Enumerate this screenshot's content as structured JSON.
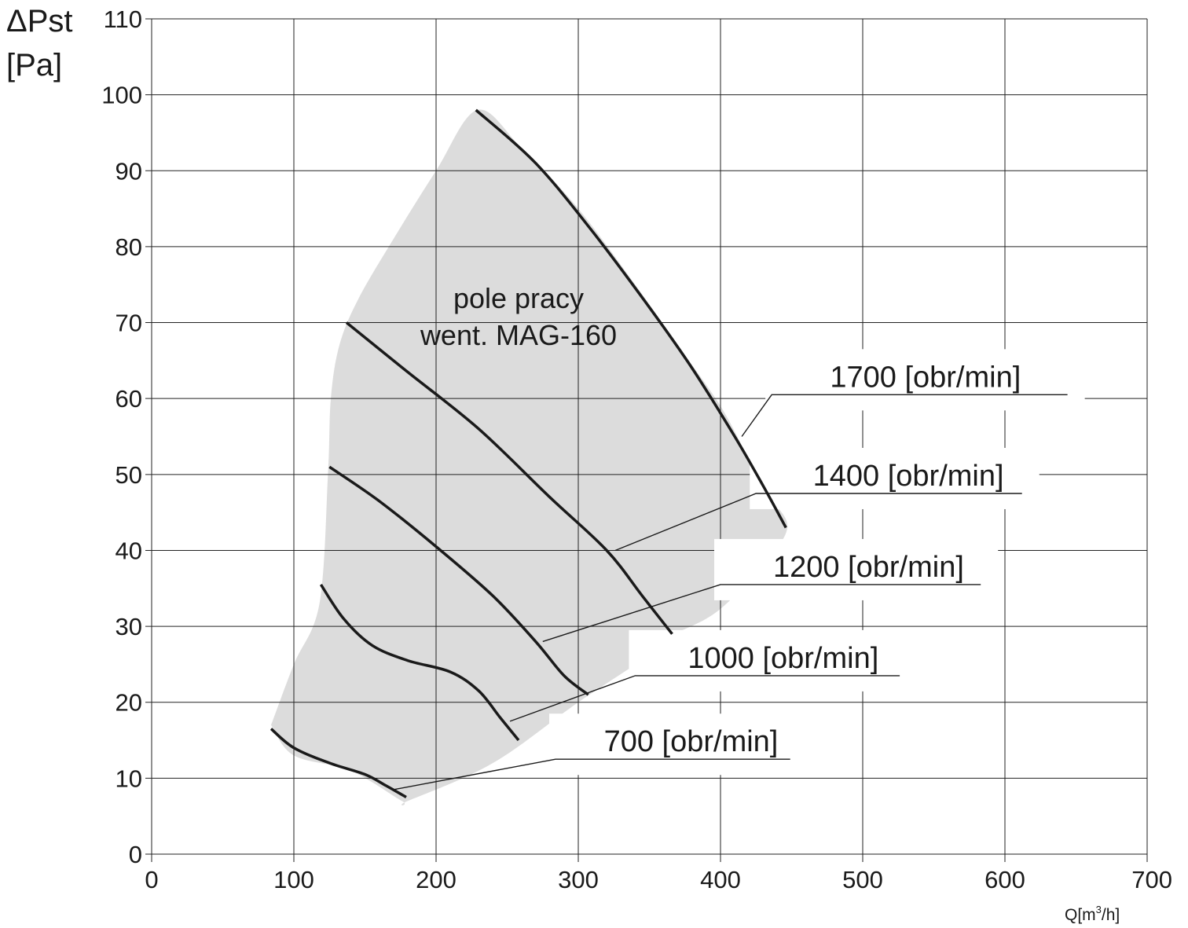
{
  "chart_data": {
    "type": "line",
    "ylabel_line1": "ΔPst",
    "ylabel_line2": "[Pa]",
    "xlabel_main": "Q[m",
    "xlabel_sup": "3",
    "xlabel_end": "/h]",
    "xlim": [
      0,
      700
    ],
    "ylim": [
      0,
      110
    ],
    "xticks": [
      "0",
      "100",
      "200",
      "300",
      "400",
      "500",
      "600",
      "700"
    ],
    "yticks": [
      "0",
      "10",
      "20",
      "30",
      "40",
      "50",
      "60",
      "70",
      "80",
      "90",
      "100",
      "110"
    ],
    "grid": true,
    "region": {
      "label_line1": "pole pracy",
      "label_line2": "went. MAG-160",
      "color": "#dcdcdc",
      "boundary": [
        [
          84,
          17
        ],
        [
          100,
          25
        ],
        [
          118,
          33
        ],
        [
          124,
          50
        ],
        [
          126,
          60
        ],
        [
          132,
          67
        ],
        [
          145,
          73
        ],
        [
          170,
          81
        ],
        [
          200,
          90
        ],
        [
          229,
          98
        ],
        [
          260,
          93
        ],
        [
          300,
          85
        ],
        [
          340,
          75
        ],
        [
          370,
          67
        ],
        [
          400,
          59
        ],
        [
          420,
          52
        ],
        [
          435,
          47
        ],
        [
          447,
          43
        ],
        [
          430,
          38
        ],
        [
          410,
          34
        ],
        [
          390,
          31
        ],
        [
          356,
          28
        ],
        [
          356,
          27
        ],
        [
          300,
          20
        ],
        [
          240,
          12
        ],
        [
          180,
          7
        ],
        [
          176,
          7
        ],
        [
          140,
          11
        ],
        [
          100,
          13
        ],
        [
          84,
          17
        ]
      ]
    },
    "series": [
      {
        "name": "700 [obr/min]",
        "points": [
          [
            84,
            16.5
          ],
          [
            100,
            14
          ],
          [
            125,
            12
          ],
          [
            150,
            10.5
          ],
          [
            165,
            9
          ],
          [
            179,
            7.5
          ]
        ],
        "label_anchor": [
          170,
          8.5
        ]
      },
      {
        "name": "1000 [obr/min]",
        "points": [
          [
            119,
            35.5
          ],
          [
            135,
            31
          ],
          [
            155,
            27.5
          ],
          [
            180,
            25.5
          ],
          [
            210,
            24
          ],
          [
            230,
            21.5
          ],
          [
            245,
            18
          ],
          [
            258,
            15
          ]
        ],
        "label_anchor": [
          252,
          17.5
        ]
      },
      {
        "name": "1200 [obr/min]",
        "points": [
          [
            125,
            51
          ],
          [
            160,
            46.5
          ],
          [
            200,
            40.5
          ],
          [
            240,
            34
          ],
          [
            270,
            28
          ],
          [
            290,
            23.5
          ],
          [
            307,
            21
          ]
        ],
        "label_anchor": [
          275,
          28
        ]
      },
      {
        "name": "1400 [obr/min]",
        "points": [
          [
            137,
            70
          ],
          [
            180,
            63.5
          ],
          [
            230,
            56
          ],
          [
            280,
            47
          ],
          [
            320,
            40
          ],
          [
            345,
            34
          ],
          [
            366,
            29
          ]
        ],
        "label_anchor": [
          326,
          40
        ]
      },
      {
        "name": "1700 [obr/min]",
        "points": [
          [
            228,
            98
          ],
          [
            270,
            91
          ],
          [
            310,
            82
          ],
          [
            350,
            72
          ],
          [
            380,
            64
          ],
          [
            410,
            55
          ],
          [
            430,
            48.5
          ],
          [
            446,
            43
          ]
        ],
        "label_anchor": [
          415,
          55
        ]
      }
    ],
    "labels_pos": [
      {
        "text_x": 477,
        "line_start_x": 436,
        "line_end_x": 644,
        "y": 60.5
      },
      {
        "text_x": 465,
        "line_start_x": 425,
        "line_end_x": 612,
        "y": 47.5
      },
      {
        "text_x": 437,
        "line_start_x": 400,
        "line_end_x": 583,
        "y": 35.5
      },
      {
        "text_x": 377,
        "line_start_x": 340,
        "line_end_x": 526,
        "y": 23.5
      },
      {
        "text_x": 318,
        "line_start_x": 284,
        "line_end_x": 449,
        "y": 12.5
      }
    ]
  }
}
